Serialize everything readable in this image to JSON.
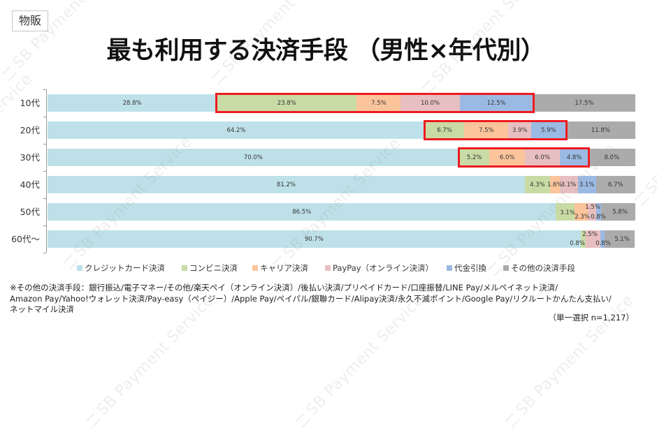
{
  "tag": "物販",
  "title": "最も利用する決済手段 （男性×年代別）",
  "watermark": "SB Payment Service",
  "footnote": {
    "lines": [
      "※その他の決済手段：銀行振込/電子マネー/その他/楽天ペイ（オンライン決済）/後払い決済/プリペイドカード/口座振替/LINE Pay/メルペイネット決済/",
      "Amazon Pay/Yahoo!ウォレット決済/Pay-easy（ペイジー）/Apple Pay/ペイパル/銀聯カード/Alipay決済/永久不滅ポイント/Google Pay/リクルートかんたん支払い/",
      "ネットマイル決済"
    ]
  },
  "sample_note": "（単一選択 n=1,217）",
  "chart_data": {
    "type": "bar",
    "orientation": "horizontal",
    "stacked": true,
    "title": "最も利用する決済手段 （男性×年代別）",
    "xlabel": "",
    "ylabel": "",
    "xlim": [
      0,
      100
    ],
    "grid": false,
    "legend_position": "bottom",
    "categories": [
      "10代",
      "20代",
      "30代",
      "40代",
      "50代",
      "60代～"
    ],
    "series": [
      {
        "name": "クレジットカード決済",
        "color": "#bee1e9",
        "values": [
          28.8,
          64.2,
          70.0,
          81.2,
          86.5,
          90.7
        ],
        "labels": [
          "28.8%",
          "64.2%",
          "70.0%",
          "81.2%",
          "86.5%",
          "90.7%"
        ]
      },
      {
        "name": "コンビニ決済",
        "color": "#c9dba5",
        "values": [
          23.8,
          6.7,
          5.2,
          4.3,
          3.1,
          0.8
        ],
        "labels": [
          "23.8%",
          "6.7%",
          "5.2%",
          "4.3%",
          "3.1%",
          "0.8%"
        ]
      },
      {
        "name": "キャリア決済",
        "color": "#fbc49b",
        "values": [
          7.5,
          7.5,
          6.0,
          1.6,
          2.3,
          0.0
        ],
        "labels": [
          "7.5%",
          "7.5%",
          "6.0%",
          "1.6%",
          "2.3%",
          ""
        ]
      },
      {
        "name": "PayPay（オンライン決済）",
        "color": "#e8bfc1",
        "values": [
          10.0,
          3.9,
          6.0,
          3.1,
          1.5,
          2.5
        ],
        "labels": [
          "10.0%",
          "3.9%",
          "6.0%",
          "3.1%",
          "1.5%",
          "2.5%"
        ]
      },
      {
        "name": "代金引換",
        "color": "#9bbae3",
        "values": [
          12.5,
          5.9,
          4.8,
          3.1,
          0.8,
          0.8
        ],
        "labels": [
          "12.5%",
          "5.9%",
          "4.8%",
          "3.1%",
          "0.8%",
          "0.8%"
        ]
      },
      {
        "name": "その他の決済手段",
        "color": "#ababab",
        "values": [
          17.5,
          11.8,
          8.0,
          6.7,
          5.8,
          5.1
        ],
        "labels": [
          "17.5%",
          "11.8%",
          "8.0%",
          "6.7%",
          "5.8%",
          "5.1%"
        ]
      }
    ],
    "annotations": [
      {
        "type": "highlight-box",
        "color": "#ee1b1f",
        "category": "10代",
        "series_from": 1,
        "series_to": 4
      },
      {
        "type": "highlight-box",
        "color": "#ee1b1f",
        "category": "20代",
        "series_from": 1,
        "series_to": 4
      },
      {
        "type": "highlight-box",
        "color": "#ee1b1f",
        "category": "30代",
        "series_from": 1,
        "series_to": 4
      }
    ]
  }
}
